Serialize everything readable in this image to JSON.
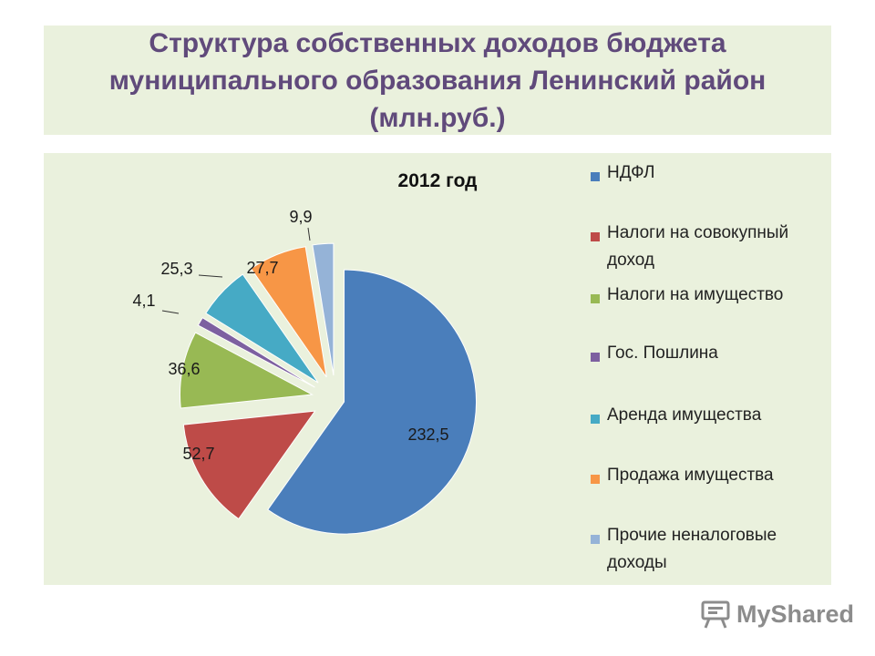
{
  "slide": {
    "title": "Структура собственных доходов бюджета\nмуниципального образования Ленинский район\n(млн.руб.)"
  },
  "chart_data": {
    "type": "pie",
    "title": "2012 год",
    "categories": [
      "НДФЛ",
      "Налоги на совокупный доход",
      "Налоги на имущество",
      "Гос. Пошлина",
      "Аренда имущества",
      "Продажа имущества",
      "Прочие неналоговые доходы"
    ],
    "values": [
      232.5,
      52.7,
      36.6,
      4.1,
      25.3,
      27.7,
      9.9
    ],
    "value_labels": [
      "232,5",
      "52,7",
      "36,6",
      "4,1",
      "25,3",
      "27,7",
      "9,9"
    ],
    "colors": [
      "#4a7ebb",
      "#be4b48",
      "#98b954",
      "#7d60a0",
      "#46aac5",
      "#f79646",
      "#95b3d7"
    ],
    "exploded": true,
    "legend_placement": "right"
  },
  "watermark": {
    "text": "MyShared",
    "icon": "presentation-board-icon"
  }
}
